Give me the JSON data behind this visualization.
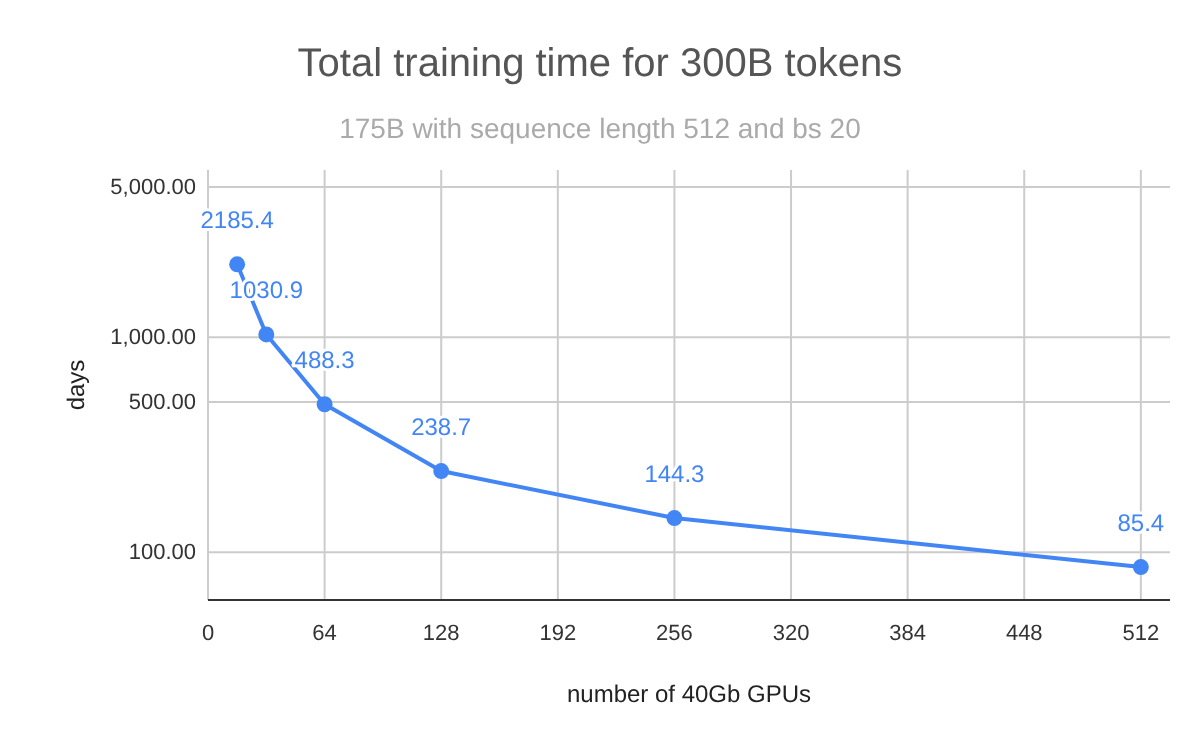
{
  "chart_data": {
    "type": "line",
    "title": "Total training time for 300B tokens",
    "subtitle": "175B with sequence length 512 and bs 20",
    "xlabel": "number of 40Gb GPUs",
    "ylabel": "days",
    "x": [
      16,
      32,
      64,
      128,
      256,
      512
    ],
    "series": [
      {
        "color": "#4285f4",
        "values": [
          2185.4,
          1030.9,
          488.3,
          238.7,
          144.3,
          85.4
        ]
      }
    ],
    "xlim": [
      0,
      528
    ],
    "xticks": [
      0,
      64,
      128,
      192,
      256,
      320,
      384,
      448,
      512
    ],
    "ylim": [
      60,
      6000
    ],
    "yticks": [
      {
        "value": 100,
        "label": "100.00"
      },
      {
        "value": 500,
        "label": "500.00"
      },
      {
        "value": 1000,
        "label": "1,000.00"
      },
      {
        "value": 5000,
        "label": "5,000.00"
      }
    ],
    "log": "y",
    "grid": true,
    "marker": "circle",
    "line_style": "solid",
    "data_labels": true
  }
}
